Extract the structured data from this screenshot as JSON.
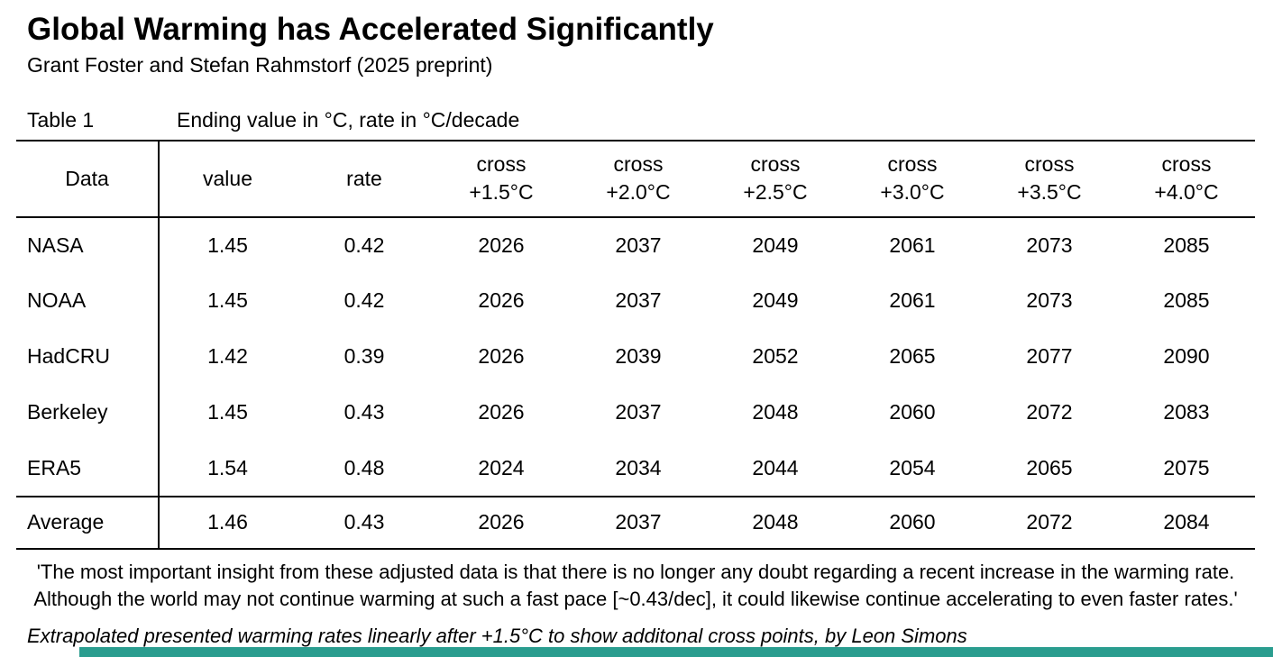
{
  "header": {
    "title": "Global Warming has Accelerated Significantly",
    "subtitle": "Grant Foster and Stefan Rahmstorf (2025 preprint)"
  },
  "table": {
    "label": "Table 1",
    "caption": "Ending value in °C, rate in °C/decade"
  },
  "chart_data": {
    "type": "table",
    "title": "Table 1 - Ending value in °C, rate in °C/decade",
    "columns": [
      {
        "label": "Data"
      },
      {
        "label": "value"
      },
      {
        "label": "rate"
      },
      {
        "label": "cross",
        "sub": "+1.5°C"
      },
      {
        "label": "cross",
        "sub": "+2.0°C"
      },
      {
        "label": "cross",
        "sub": "+2.5°C"
      },
      {
        "label": "cross",
        "sub": "+3.0°C"
      },
      {
        "label": "cross",
        "sub": "+3.5°C"
      },
      {
        "label": "cross",
        "sub": "+4.0°C"
      }
    ],
    "rows": [
      [
        "NASA",
        "1.45",
        "0.42",
        "2026",
        "2037",
        "2049",
        "2061",
        "2073",
        "2085"
      ],
      [
        "NOAA",
        "1.45",
        "0.42",
        "2026",
        "2037",
        "2049",
        "2061",
        "2073",
        "2085"
      ],
      [
        "HadCRU",
        "1.42",
        "0.39",
        "2026",
        "2039",
        "2052",
        "2065",
        "2077",
        "2090"
      ],
      [
        "Berkeley",
        "1.45",
        "0.43",
        "2026",
        "2037",
        "2048",
        "2060",
        "2072",
        "2083"
      ],
      [
        "ERA5",
        "1.54",
        "0.48",
        "2024",
        "2034",
        "2044",
        "2054",
        "2065",
        "2075"
      ]
    ],
    "summary_row": [
      "Average",
      "1.46",
      "0.43",
      "2026",
      "2037",
      "2048",
      "2060",
      "2072",
      "2084"
    ]
  },
  "notes": {
    "quote": "'The most important insight from these adjusted data is that there is no longer any doubt regarding a recent increase in the warming rate. Although the world may not continue warming at such a fast pace [~0.43/dec], it could likewise continue accelerating to even faster rates.'",
    "footnote": "Extrapolated presented warming rates linearly after +1.5°C to show additonal cross points, by Leon Simons"
  },
  "theme": {
    "accent_bar_color": "#2a9d8f",
    "text_color": "#000000",
    "background_color": "#ffffff"
  }
}
